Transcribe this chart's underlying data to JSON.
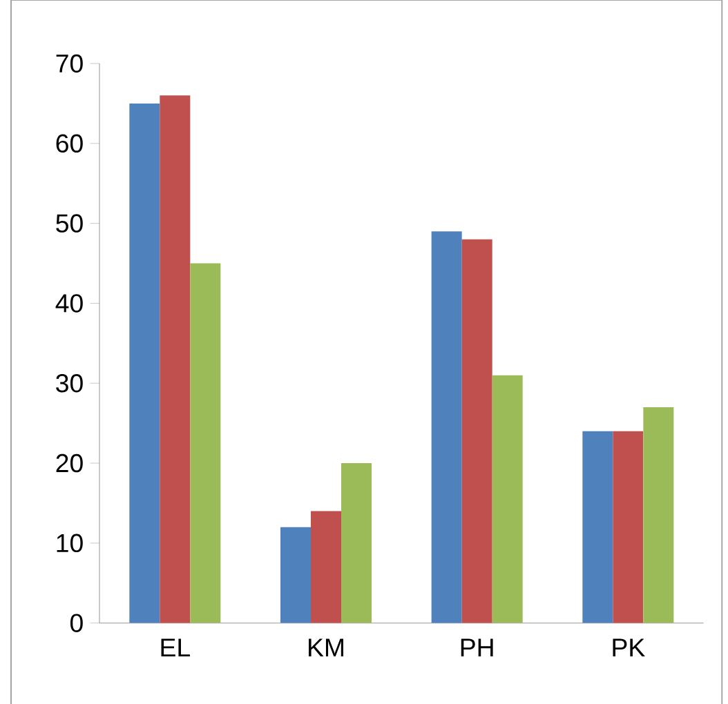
{
  "chart_data": {
    "type": "bar",
    "categories": [
      "EL",
      "KM",
      "PH",
      "PK"
    ],
    "series": [
      {
        "color": "#4f81bd",
        "values": [
          65,
          12,
          49,
          24
        ]
      },
      {
        "color": "#c0504d",
        "values": [
          66,
          14,
          48,
          24
        ]
      },
      {
        "color": "#9bbb59",
        "values": [
          45,
          20,
          31,
          27
        ]
      }
    ],
    "ylim": [
      0,
      70
    ],
    "yticks": [
      0,
      10,
      20,
      30,
      40,
      50,
      60,
      70
    ]
  }
}
